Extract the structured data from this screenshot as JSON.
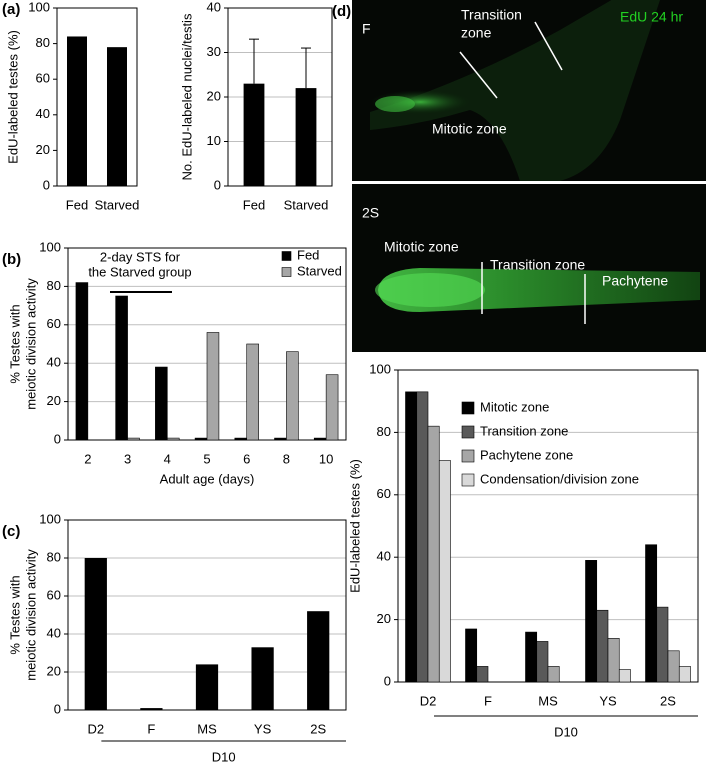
{
  "panel_labels": [
    "(a)",
    "(b)",
    "(c)",
    "(d)"
  ],
  "micrographs": [
    {
      "panel": "F",
      "labels": [
        "Transition",
        "zone",
        "Mitotic zone"
      ],
      "stain": "EdU 24 hr"
    },
    {
      "panel": "2S",
      "labels": [
        "Mitotic zone",
        "Transition zone",
        "Pachytene"
      ]
    }
  ],
  "chart_data": [
    {
      "type": "bar",
      "ylabel": "EdU-labeled testes (%)",
      "categories": [
        "Fed",
        "Starved"
      ],
      "values": [
        84,
        78
      ],
      "color": "#000000",
      "ylim": [
        0,
        100
      ],
      "yticks": [
        0,
        20,
        40,
        60,
        80,
        100
      ],
      "grid": false
    },
    {
      "type": "bar",
      "ylabel": "No. EdU-labeled nuclei/testis",
      "categories": [
        "Fed",
        "Starved"
      ],
      "values": [
        23,
        22
      ],
      "errors": [
        10,
        9
      ],
      "color": "#000000",
      "ylim": [
        0,
        40
      ],
      "yticks": [
        0,
        10,
        20,
        30,
        40
      ],
      "grid": true
    },
    {
      "type": "bar",
      "xlabel": "Adult age (days)",
      "ylabel": [
        "% Testes with",
        "meiotic division activity"
      ],
      "categories": [
        "2",
        "3",
        "4",
        "5",
        "6",
        "8",
        "10"
      ],
      "series": [
        {
          "name": "Fed",
          "color": "#000000",
          "values": [
            82,
            75,
            38,
            1,
            1,
            1,
            1
          ]
        },
        {
          "name": "Starved",
          "color": "#a6a6a6",
          "values": [
            null,
            1,
            1,
            56,
            50,
            46,
            34
          ]
        }
      ],
      "annotation": [
        "2-day STS for",
        "the Starved group"
      ],
      "ylim": [
        0,
        100
      ],
      "yticks": [
        0,
        20,
        40,
        60,
        80,
        100
      ],
      "grid": true,
      "legend": "upper right"
    },
    {
      "type": "bar",
      "ylabel": [
        "% Testes with",
        "meiotic division activity"
      ],
      "categories": [
        "D2",
        "F",
        "MS",
        "YS",
        "2S"
      ],
      "values": [
        80,
        1,
        24,
        33,
        52
      ],
      "color": "#000000",
      "group_label": "D10",
      "ylim": [
        0,
        100
      ],
      "yticks": [
        0,
        20,
        40,
        60,
        80,
        100
      ],
      "grid": true
    },
    {
      "type": "bar",
      "ylabel": "EdU-labeled testes (%)",
      "categories": [
        "D2",
        "F",
        "MS",
        "YS",
        "2S"
      ],
      "series": [
        {
          "name": "Mitotic zone",
          "color": "#000000",
          "values": [
            93,
            17,
            16,
            39,
            44
          ]
        },
        {
          "name": "Transition zone",
          "color": "#595959",
          "values": [
            93,
            5,
            13,
            23,
            24
          ]
        },
        {
          "name": "Pachytene zone",
          "color": "#a6a6a6",
          "values": [
            82,
            0,
            5,
            14,
            10
          ]
        },
        {
          "name": "Condensation/division zone",
          "color": "#d9d9d9",
          "values": [
            71,
            0,
            0,
            4,
            5
          ]
        }
      ],
      "group_label": "D10",
      "ylim": [
        0,
        100
      ],
      "yticks": [
        0,
        20,
        40,
        60,
        80,
        100
      ],
      "grid": true,
      "legend": "upper right"
    }
  ]
}
